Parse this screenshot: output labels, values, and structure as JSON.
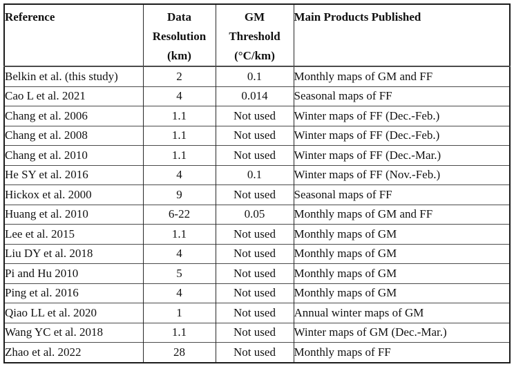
{
  "table": {
    "header": {
      "reference": "Reference",
      "data_resolution_lines": [
        "Data",
        "Resolution",
        "(km)"
      ],
      "gm_threshold_lines": [
        "GM",
        "Threshold",
        "(°C/km)"
      ],
      "main_products": "Main Products Published"
    },
    "rows": [
      {
        "reference": "Belkin et al. (this study)",
        "resolution": "2",
        "threshold": "0.1",
        "products": "Monthly maps of GM and FF"
      },
      {
        "reference": "Cao L et al. 2021",
        "resolution": "4",
        "threshold": "0.014",
        "products": "Seasonal maps of FF"
      },
      {
        "reference": "Chang et al. 2006",
        "resolution": "1.1",
        "threshold": "Not used",
        "products": "Winter maps of FF (Dec.-Feb.)"
      },
      {
        "reference": "Chang et al. 2008",
        "resolution": "1.1",
        "threshold": "Not used",
        "products": "Winter maps of FF (Dec.-Feb.)"
      },
      {
        "reference": "Chang et al. 2010",
        "resolution": "1.1",
        "threshold": "Not used",
        "products": "Winter maps of FF (Dec.-Mar.)"
      },
      {
        "reference": "He SY et al. 2016",
        "resolution": "4",
        "threshold": "0.1",
        "products": "Winter maps of FF (Nov.-Feb.)"
      },
      {
        "reference": "Hickox et al. 2000",
        "resolution": "9",
        "threshold": "Not used",
        "products": "Seasonal maps of FF"
      },
      {
        "reference": "Huang et al. 2010",
        "resolution": "6-22",
        "threshold": "0.05",
        "products": "Monthly maps of GM and FF"
      },
      {
        "reference": "Lee et al. 2015",
        "resolution": "1.1",
        "threshold": "Not used",
        "products": "Monthly maps of GM"
      },
      {
        "reference": "Liu DY et al. 2018",
        "resolution": "4",
        "threshold": "Not used",
        "products": "Monthly maps of GM"
      },
      {
        "reference": "Pi and Hu 2010",
        "resolution": "5",
        "threshold": "Not used",
        "products": "Monthly maps of GM"
      },
      {
        "reference": "Ping et al. 2016",
        "resolution": "4",
        "threshold": "Not used",
        "products": "Monthly maps of GM"
      },
      {
        "reference": "Qiao LL et al. 2020",
        "resolution": "1",
        "threshold": "Not used",
        "products": "Annual winter maps of GM"
      },
      {
        "reference": "Wang YC et al. 2018",
        "resolution": "1.1",
        "threshold": "Not used",
        "products": "Winter maps of GM (Dec.-Mar.)"
      },
      {
        "reference": "Zhao et al. 2022",
        "resolution": "28",
        "threshold": "Not used",
        "products": "Monthly maps of FF"
      }
    ]
  },
  "colors": {
    "outer_border": "#1b1b1b",
    "inner_vertical_border": "#262626",
    "row_separator": "#4a4a4a",
    "text": "#111111",
    "background": "#ffffff"
  }
}
